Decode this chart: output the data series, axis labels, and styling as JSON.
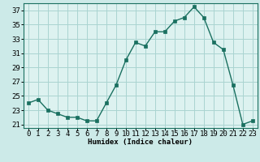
{
  "x": [
    0,
    1,
    2,
    3,
    4,
    5,
    6,
    7,
    8,
    9,
    10,
    11,
    12,
    13,
    14,
    15,
    16,
    17,
    18,
    19,
    20,
    21,
    22,
    23
  ],
  "y": [
    24,
    24.5,
    23,
    22.5,
    22,
    22,
    21.5,
    21.5,
    24,
    26.5,
    30,
    32.5,
    32,
    34,
    34,
    35.5,
    36,
    37.5,
    36,
    32.5,
    31.5,
    26.5,
    21,
    21.5
  ],
  "xlabel": "Humidex (Indice chaleur)",
  "xlim": [
    -0.5,
    23.5
  ],
  "ylim": [
    20.5,
    38.0
  ],
  "yticks": [
    21,
    23,
    25,
    27,
    29,
    31,
    33,
    35,
    37
  ],
  "xticks": [
    0,
    1,
    2,
    3,
    4,
    5,
    6,
    7,
    8,
    9,
    10,
    11,
    12,
    13,
    14,
    15,
    16,
    17,
    18,
    19,
    20,
    21,
    22,
    23
  ],
  "line_color": "#1a7060",
  "marker_color": "#1a7060",
  "bg_color": "#cceae8",
  "grid_color": "#aad4d1",
  "plot_bg": "#ddf2f0",
  "label_fontsize": 6.5,
  "tick_fontsize": 6.5
}
